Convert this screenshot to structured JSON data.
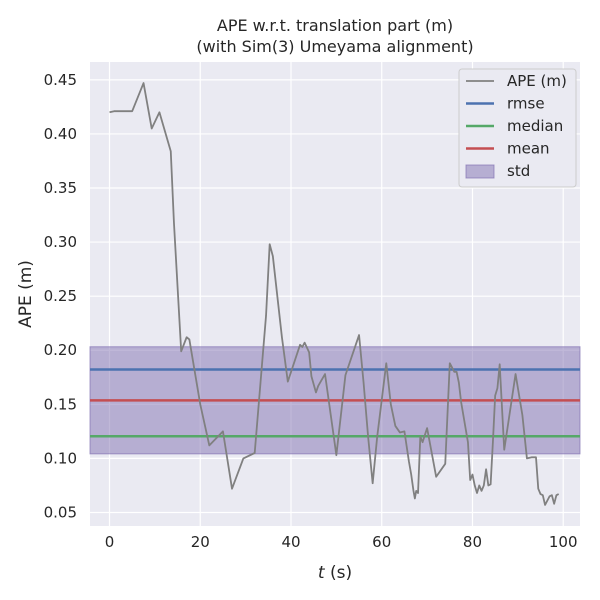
{
  "chart_data": {
    "type": "line",
    "title": "APE w.r.t. translation part (m)",
    "subtitle": "(with Sim(3) Umeyama alignment)",
    "xlabel": "t (s)",
    "xlabel_var": "t",
    "xlabel_unit": " (s)",
    "ylabel": "APE (m)",
    "xlim": [
      -4.3,
      103.7
    ],
    "ylim": [
      0.0375,
      0.4665
    ],
    "xticks": [
      0,
      20,
      40,
      60,
      80,
      100
    ],
    "yticks": [
      0.05,
      0.1,
      0.15,
      0.2,
      0.25,
      0.3,
      0.35,
      0.4,
      0.45
    ],
    "ytick_labels": [
      "0.05",
      "0.10",
      "0.15",
      "0.20",
      "0.25",
      "0.30",
      "0.35",
      "0.40",
      "0.45"
    ],
    "grid": true,
    "legend_position": "top-right",
    "colors": {
      "background": "#eaeaf2",
      "grid": "#ffffff",
      "ape": "#808080",
      "rmse": "#4c72b0",
      "median": "#55a868",
      "mean": "#c44e52",
      "std": "#8172b2"
    },
    "series": [
      {
        "name": "APE (m)",
        "kind": "line",
        "x": [
          0,
          1,
          3,
          5,
          7.5,
          9.3,
          11,
          13.5,
          14.2,
          15.8,
          17,
          17.6,
          20,
          22,
          25,
          27,
          29.5,
          32,
          34.5,
          35.3,
          36,
          38,
          39.3,
          42,
          42.5,
          43,
          44,
          44.5,
          45.5,
          46,
          47.5,
          48,
          50,
          52,
          55,
          56,
          57,
          58,
          59,
          61,
          62,
          63,
          64,
          65,
          66,
          66.5,
          67,
          67.3,
          67.6,
          68,
          68.5,
          69,
          70,
          72,
          74,
          75,
          76,
          76.5,
          77,
          77.5,
          79,
          79.5,
          80,
          80.5,
          81,
          81.5,
          82,
          82.5,
          83,
          83.5,
          84,
          84.5,
          85,
          85.5,
          86,
          87,
          89.5,
          91,
          92,
          93,
          94,
          94.5,
          95,
          95.5,
          96,
          97,
          97.5,
          98,
          98.5,
          99
        ],
        "y": [
          0.42,
          0.421,
          0.421,
          0.421,
          0.447,
          0.405,
          0.42,
          0.384,
          0.318,
          0.199,
          0.212,
          0.21,
          0.15,
          0.112,
          0.125,
          0.072,
          0.1,
          0.105,
          0.232,
          0.298,
          0.287,
          0.212,
          0.171,
          0.205,
          0.203,
          0.207,
          0.198,
          0.176,
          0.161,
          0.167,
          0.178,
          0.163,
          0.103,
          0.177,
          0.214,
          0.17,
          0.12,
          0.077,
          0.12,
          0.188,
          0.15,
          0.13,
          0.124,
          0.125,
          0.097,
          0.085,
          0.07,
          0.063,
          0.07,
          0.068,
          0.12,
          0.115,
          0.128,
          0.083,
          0.095,
          0.188,
          0.18,
          0.18,
          0.17,
          0.152,
          0.115,
          0.08,
          0.085,
          0.075,
          0.068,
          0.075,
          0.07,
          0.075,
          0.09,
          0.075,
          0.076,
          0.115,
          0.158,
          0.165,
          0.187,
          0.108,
          0.178,
          0.14,
          0.1,
          0.101,
          0.101,
          0.072,
          0.067,
          0.066,
          0.057,
          0.065,
          0.066,
          0.058,
          0.066,
          0.067
        ]
      },
      {
        "name": "rmse",
        "kind": "hline",
        "value": 0.1822
      },
      {
        "name": "median",
        "kind": "hline",
        "value": 0.1205
      },
      {
        "name": "mean",
        "kind": "hline",
        "value": 0.1537
      },
      {
        "name": "std",
        "kind": "band",
        "low": 0.1042,
        "high": 0.2032
      }
    ]
  }
}
